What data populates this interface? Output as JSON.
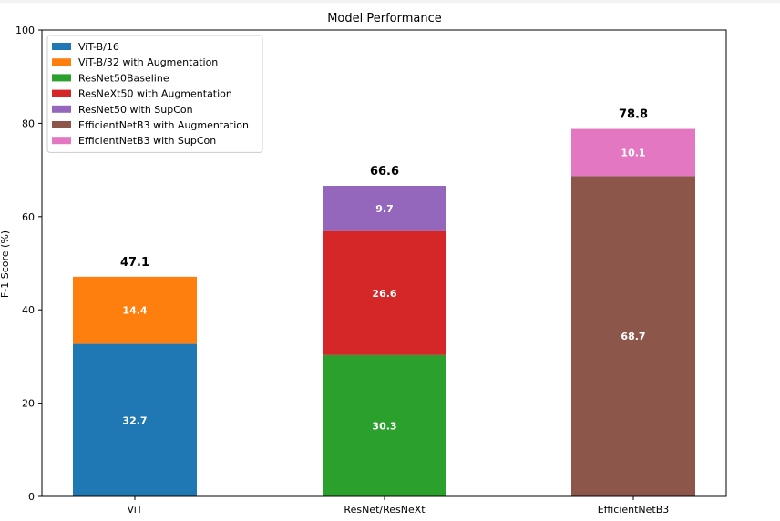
{
  "chart_data": {
    "type": "bar",
    "stacked": true,
    "title": "Model Performance",
    "xlabel": "",
    "ylabel": "F-1 Score (%)",
    "ylim": [
      0,
      100
    ],
    "yticks": [
      0,
      20,
      40,
      60,
      80,
      100
    ],
    "categories": [
      "ViT",
      "ResNet/ResNeXt",
      "EfficientNetB3"
    ],
    "grid": false,
    "legend_position": "top-left",
    "series": [
      {
        "name": "ViT-B/16",
        "color": "#1f77b4",
        "category": "ViT",
        "base": 0,
        "value": 32.7,
        "label": "32.7"
      },
      {
        "name": "ViT-B/32 with Augmentation",
        "color": "#ff7f0e",
        "category": "ViT",
        "base": 32.7,
        "value": 14.4,
        "label": "14.4"
      },
      {
        "name": "ResNet50Baseline",
        "color": "#2ca02c",
        "category": "ResNet/ResNeXt",
        "base": 0,
        "value": 30.3,
        "label": "30.3"
      },
      {
        "name": "ResNeXt50 with Augmentation",
        "color": "#d62728",
        "category": "ResNet/ResNeXt",
        "base": 30.3,
        "value": 26.6,
        "label": "26.6"
      },
      {
        "name": "ResNet50 with SupCon",
        "color": "#9467bd",
        "category": "ResNet/ResNeXt",
        "base": 56.9,
        "value": 9.7,
        "label": "9.7"
      },
      {
        "name": "EfficientNetB3 with Augmentation",
        "color": "#8c564b",
        "category": "EfficientNetB3",
        "base": 0,
        "value": 68.7,
        "label": "68.7"
      },
      {
        "name": "EfficientNetB3 with SupCon",
        "color": "#e377c2",
        "category": "EfficientNetB3",
        "base": 68.7,
        "value": 10.1,
        "label": "10.1"
      }
    ],
    "totals": [
      {
        "category": "ViT",
        "value": 47.1,
        "label": "47.1"
      },
      {
        "category": "ResNet/ResNeXt",
        "value": 66.6,
        "label": "66.6"
      },
      {
        "category": "EfficientNetB3",
        "value": 78.8,
        "label": "78.8"
      }
    ]
  }
}
